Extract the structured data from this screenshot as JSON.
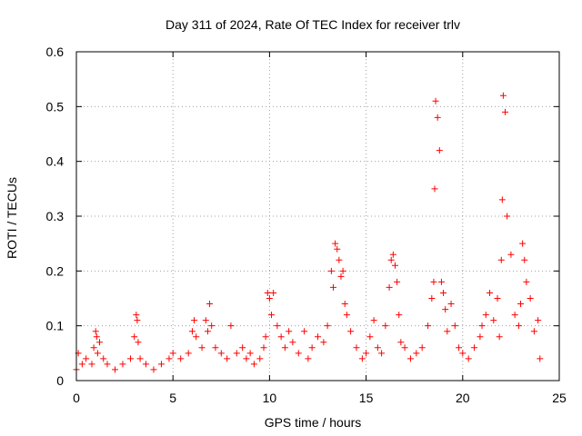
{
  "chart_data": {
    "type": "scatter",
    "title": "Day 311 of 2024, Rate Of TEC Index for receiver trlv",
    "xlabel": "GPS time / hours",
    "ylabel": "ROTI / TECUs",
    "xlim": [
      0,
      25
    ],
    "ylim": [
      0,
      0.6
    ],
    "x_ticks": [
      0,
      5,
      10,
      15,
      20,
      25
    ],
    "y_ticks": [
      0,
      0.1,
      0.2,
      0.3,
      0.4,
      0.5,
      0.6
    ],
    "x_tick_labels": [
      "0",
      "5",
      "10",
      "15",
      "20",
      "25"
    ],
    "y_tick_labels": [
      "0",
      "0.1",
      "0.2",
      "0.3",
      "0.4",
      "0.5",
      "0.6"
    ],
    "grid": true,
    "marker": "+",
    "color": "#ff0000",
    "series": [
      {
        "name": "ROTI",
        "x": [
          0.0,
          0.1,
          0.3,
          0.5,
          0.8,
          0.9,
          1.0,
          1.05,
          1.1,
          1.2,
          1.4,
          1.6,
          2.0,
          2.4,
          2.8,
          3.0,
          3.1,
          3.15,
          3.2,
          3.3,
          3.6,
          4.0,
          4.4,
          4.8,
          5.0,
          5.4,
          5.8,
          6.0,
          6.1,
          6.2,
          6.5,
          6.7,
          6.8,
          6.9,
          7.0,
          7.2,
          7.5,
          7.8,
          8.0,
          8.3,
          8.6,
          8.8,
          9.0,
          9.2,
          9.5,
          9.7,
          9.8,
          9.9,
          10.0,
          10.1,
          10.2,
          10.4,
          10.6,
          10.8,
          11.0,
          11.2,
          11.5,
          11.8,
          12.0,
          12.2,
          12.5,
          12.8,
          13.0,
          13.2,
          13.3,
          13.4,
          13.5,
          13.6,
          13.7,
          13.8,
          13.9,
          14.0,
          14.2,
          14.5,
          14.8,
          15.0,
          15.2,
          15.4,
          15.6,
          15.8,
          16.0,
          16.2,
          16.3,
          16.4,
          16.5,
          16.6,
          16.7,
          16.8,
          17.0,
          17.3,
          17.6,
          17.9,
          18.2,
          18.4,
          18.5,
          18.55,
          18.6,
          18.7,
          18.8,
          18.9,
          19.0,
          19.1,
          19.2,
          19.4,
          19.6,
          19.8,
          20.0,
          20.3,
          20.6,
          20.9,
          21.0,
          21.2,
          21.4,
          21.6,
          21.8,
          21.9,
          22.0,
          22.05,
          22.1,
          22.2,
          22.3,
          22.5,
          22.7,
          22.9,
          23.0,
          23.1,
          23.2,
          23.3,
          23.5,
          23.7,
          23.9,
          24.0
        ],
        "y": [
          0.02,
          0.05,
          0.03,
          0.04,
          0.03,
          0.06,
          0.09,
          0.08,
          0.05,
          0.07,
          0.04,
          0.03,
          0.02,
          0.03,
          0.04,
          0.08,
          0.12,
          0.11,
          0.07,
          0.04,
          0.03,
          0.02,
          0.03,
          0.04,
          0.05,
          0.04,
          0.05,
          0.09,
          0.11,
          0.08,
          0.06,
          0.11,
          0.09,
          0.14,
          0.1,
          0.06,
          0.05,
          0.04,
          0.1,
          0.05,
          0.06,
          0.04,
          0.05,
          0.03,
          0.04,
          0.06,
          0.08,
          0.16,
          0.15,
          0.12,
          0.16,
          0.1,
          0.08,
          0.06,
          0.09,
          0.07,
          0.05,
          0.09,
          0.04,
          0.06,
          0.08,
          0.07,
          0.1,
          0.2,
          0.17,
          0.25,
          0.24,
          0.22,
          0.19,
          0.2,
          0.14,
          0.12,
          0.09,
          0.06,
          0.04,
          0.05,
          0.08,
          0.11,
          0.06,
          0.05,
          0.1,
          0.17,
          0.22,
          0.23,
          0.21,
          0.18,
          0.12,
          0.07,
          0.06,
          0.04,
          0.05,
          0.06,
          0.1,
          0.15,
          0.18,
          0.35,
          0.51,
          0.48,
          0.42,
          0.18,
          0.16,
          0.13,
          0.09,
          0.14,
          0.1,
          0.06,
          0.05,
          0.04,
          0.06,
          0.08,
          0.1,
          0.12,
          0.16,
          0.11,
          0.15,
          0.08,
          0.22,
          0.33,
          0.52,
          0.49,
          0.3,
          0.23,
          0.12,
          0.1,
          0.14,
          0.25,
          0.22,
          0.18,
          0.15,
          0.09,
          0.11,
          0.04
        ]
      }
    ]
  }
}
